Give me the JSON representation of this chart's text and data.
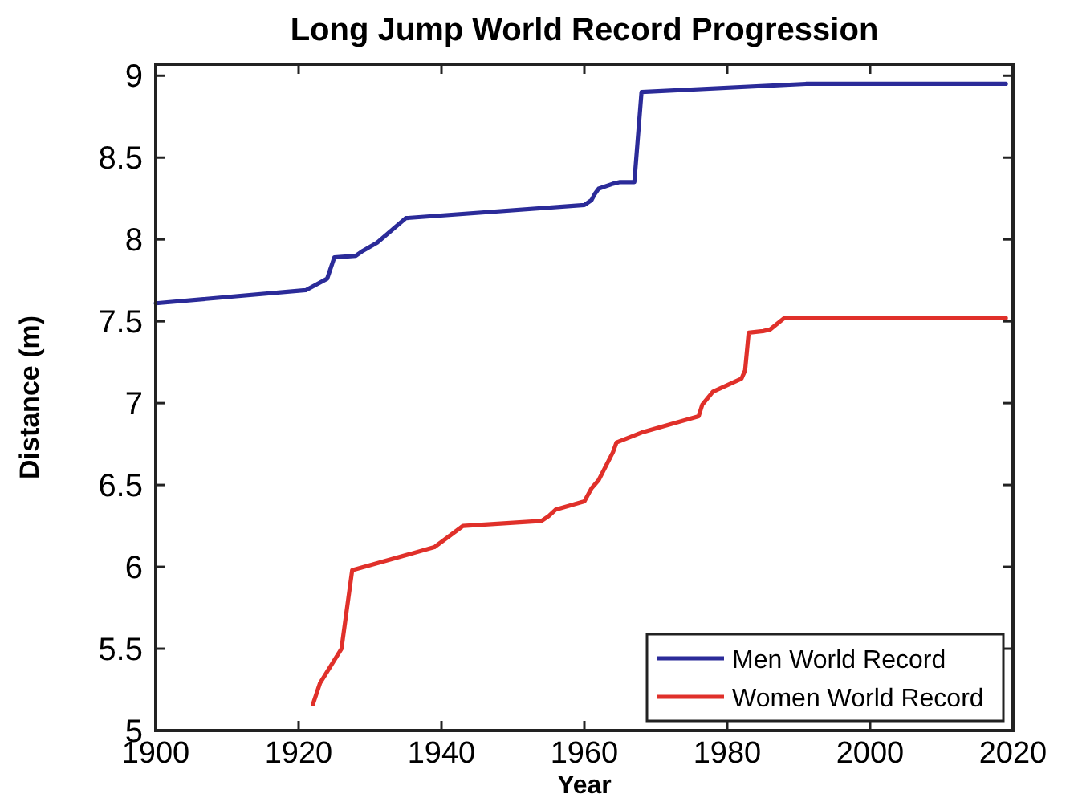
{
  "chart_data": {
    "type": "line",
    "title": "Long Jump World Record Progression",
    "xlabel": "Year",
    "ylabel": "Distance (m)",
    "xlim": [
      1900,
      2020
    ],
    "xticks": [
      1900,
      1920,
      1940,
      1960,
      1980,
      2000,
      2020
    ],
    "ylim": [
      5,
      9.07
    ],
    "yticks": [
      5,
      5.5,
      6,
      6.5,
      7,
      7.5,
      8,
      8.5,
      9
    ],
    "grid": false,
    "legend": "bottom right",
    "marker": "none",
    "line_style": "solid",
    "series": [
      {
        "name": "Men World Record",
        "color": "#2b2b99",
        "x": [
          1900,
          1921,
          1924,
          1925,
          1928,
          1929,
          1931,
          1935,
          1960,
          1961,
          1961.5,
          1962,
          1964,
          1965,
          1967,
          1968,
          1991,
          2019
        ],
        "values": [
          7.61,
          7.69,
          7.76,
          7.89,
          7.9,
          7.93,
          7.98,
          8.13,
          8.21,
          8.24,
          8.28,
          8.31,
          8.34,
          8.35,
          8.35,
          8.9,
          8.95,
          8.95
        ]
      },
      {
        "name": "Women World Record",
        "color": "#e0302a",
        "x": [
          1922,
          1923,
          1926,
          1927.5,
          1939,
          1943,
          1954,
          1955,
          1956,
          1960,
          1961,
          1962,
          1964,
          1964.5,
          1968,
          1976,
          1976.5,
          1978,
          1982,
          1982.5,
          1983,
          1985,
          1986,
          1988,
          2019
        ],
        "values": [
          5.16,
          5.29,
          5.5,
          5.98,
          6.12,
          6.25,
          6.28,
          6.31,
          6.35,
          6.4,
          6.48,
          6.53,
          6.7,
          6.76,
          6.82,
          6.92,
          6.99,
          7.07,
          7.15,
          7.2,
          7.43,
          7.44,
          7.45,
          7.52,
          7.52
        ]
      }
    ]
  }
}
